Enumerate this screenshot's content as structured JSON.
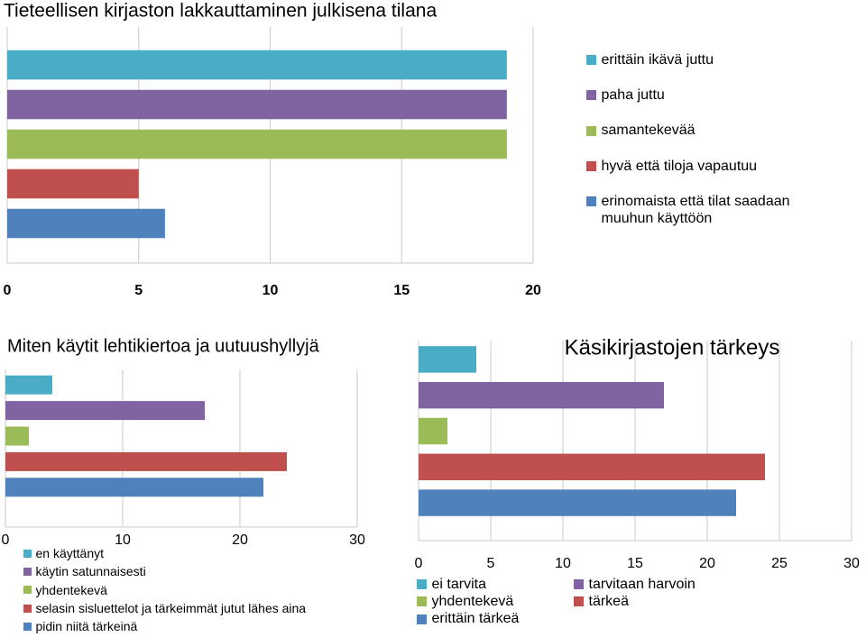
{
  "chart_data": [
    {
      "type": "bar",
      "orientation": "horizontal",
      "title": "Tieteellisen kirjaston lakkauttaminen julkisena tilana",
      "series": [
        {
          "name": "erittäin ikävä juttu",
          "color": "#4bacc6",
          "values": [
            19
          ]
        },
        {
          "name": "paha juttu",
          "color": "#8064a2",
          "values": [
            19
          ]
        },
        {
          "name": "samantekevää",
          "color": "#9bbb59",
          "values": [
            19
          ]
        },
        {
          "name": "hyvä että tiloja vapautuu",
          "color": "#c0504d",
          "values": [
            5
          ]
        },
        {
          "name": "erinomaista että tilat saadaan muuhun käyttöön",
          "color": "#4f81bd",
          "values": [
            6
          ]
        }
      ],
      "xlim": [
        0,
        20
      ],
      "xticks": [
        0,
        5,
        10,
        15,
        20
      ],
      "grid": true,
      "legend": "right"
    },
    {
      "type": "bar",
      "orientation": "horizontal",
      "title": "Miten käytit lehtikiertoa ja uutuushyllyjä",
      "series": [
        {
          "name": "en käyttänyt",
          "color": "#4bacc6",
          "values": [
            4
          ]
        },
        {
          "name": "käytin satunnaisesti",
          "color": "#8064a2",
          "values": [
            17
          ]
        },
        {
          "name": "yhdentekevä",
          "color": "#9bbb59",
          "values": [
            2
          ]
        },
        {
          "name": "selasin sisluettelot ja tärkeimmät jutut lähes aina",
          "color": "#c0504d",
          "values": [
            24
          ]
        },
        {
          "name": "pidin niitä tärkeinä",
          "color": "#4f81bd",
          "values": [
            22
          ]
        }
      ],
      "xlim": [
        0,
        30
      ],
      "xticks": [
        0,
        10,
        20,
        30
      ],
      "grid": true,
      "legend": "bottom"
    },
    {
      "type": "bar",
      "orientation": "horizontal",
      "title": "Käsikirjastojen tärkeys",
      "series": [
        {
          "name": "ei tarvita",
          "color": "#4bacc6",
          "values": [
            4
          ]
        },
        {
          "name": "tarvitaan harvoin",
          "color": "#8064a2",
          "values": [
            17
          ]
        },
        {
          "name": "yhdentekevä",
          "color": "#9bbb59",
          "values": [
            2
          ]
        },
        {
          "name": "tärkeä",
          "color": "#c0504d",
          "values": [
            24
          ]
        },
        {
          "name": "erittäin tärkeä",
          "color": "#4f81bd",
          "values": [
            22
          ]
        }
      ],
      "xlim": [
        0,
        30
      ],
      "xticks": [
        0,
        5,
        10,
        15,
        20,
        25,
        30
      ],
      "grid": true,
      "legend": "bottom"
    }
  ]
}
